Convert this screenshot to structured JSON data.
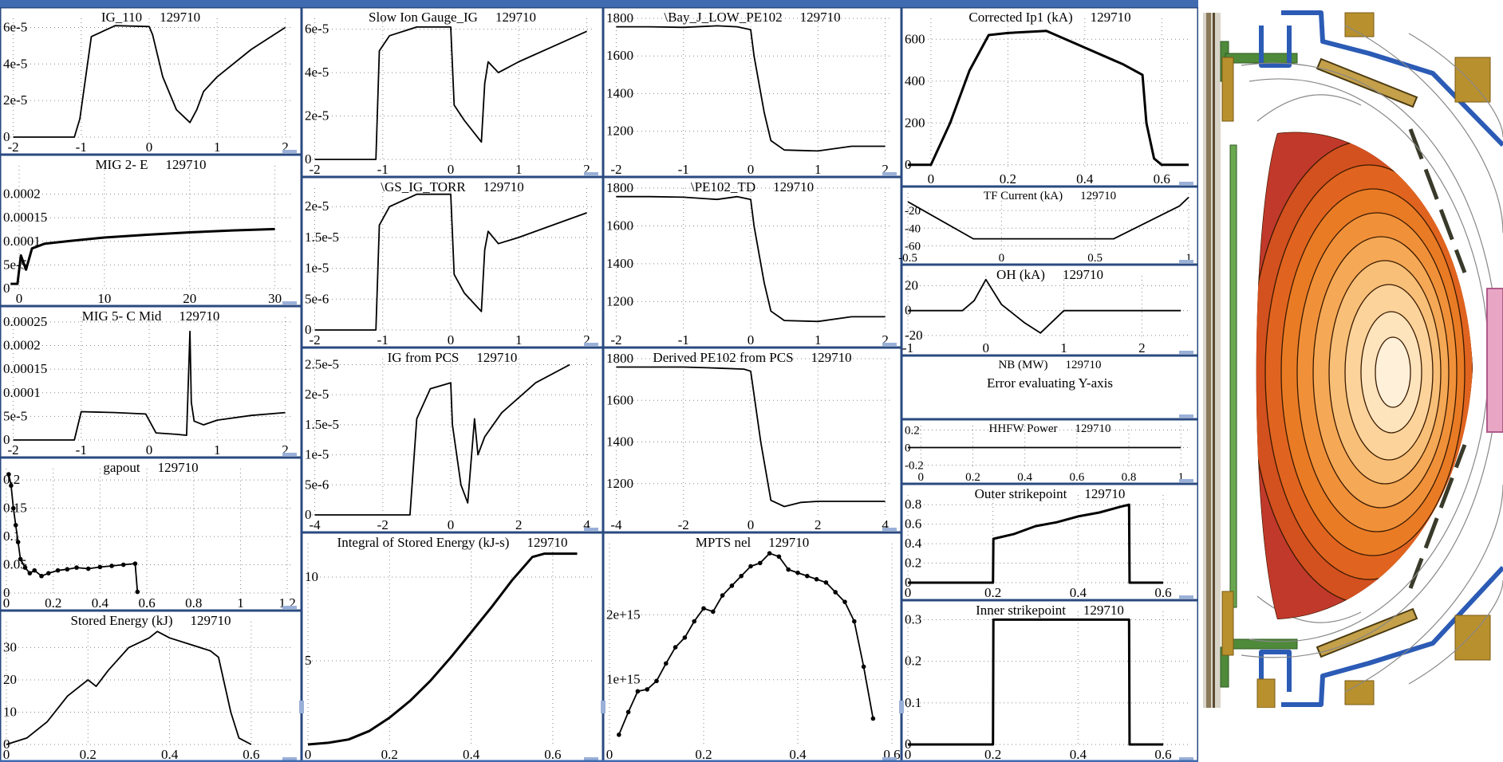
{
  "shot": "129710",
  "colors": {
    "line": "#000000",
    "grid": "#888888",
    "frame": "#2a4a80",
    "tab": "#9ab0d8",
    "bar": "#3f6bb0",
    "vessel_blue": "#2b5bb5",
    "coil_gold": "#b8902e",
    "tile_green": "#4f8a3a",
    "antenna_pink": "#e8a6c4"
  },
  "chart_data": [
    {
      "id": "p1",
      "col": 0,
      "row": 0,
      "type": "line",
      "title": "IG_110",
      "shot": "129710",
      "ylim": [
        0,
        6.5e-05
      ],
      "xlim": [
        -2.1,
        2.1
      ],
      "yticks": [
        0,
        2e-05,
        4e-05,
        6e-05
      ],
      "ytick_labels": [
        "0",
        "2e-5",
        "4e-5",
        "6e-5"
      ],
      "xticks": [
        -2,
        -1,
        0,
        1,
        2
      ],
      "xtick_labels": [
        "-2",
        "-1",
        "0",
        "1",
        "2"
      ],
      "x": [
        -2,
        -1.1,
        -1.02,
        -0.85,
        -0.5,
        0,
        0.05,
        0.2,
        0.4,
        0.6,
        0.7,
        0.8,
        1.0,
        1.5,
        2.0
      ],
      "y": [
        0,
        0,
        1e-05,
        5.5e-05,
        6.1e-05,
        6.05e-05,
        5.6e-05,
        3.3e-05,
        1.5e-05,
        8e-06,
        1.5e-05,
        2.5e-05,
        3.3e-05,
        4.8e-05,
        6e-05
      ]
    },
    {
      "id": "p2",
      "col": 0,
      "row": 1,
      "type": "line",
      "title": "MIG 2- E",
      "shot": "129710",
      "ylim": [
        0,
        0.00026
      ],
      "xlim": [
        -1.5,
        32
      ],
      "yticks": [
        0,
        5e-05,
        0.0001,
        0.00015,
        0.0002
      ],
      "ytick_labels": [
        "0",
        "5e-5",
        "0.0001",
        "0.00015",
        "0.0002"
      ],
      "xticks": [
        0,
        10,
        20,
        30
      ],
      "xtick_labels": [
        "0",
        "10",
        "20",
        "30"
      ],
      "x": [
        -1,
        -0.2,
        0.2,
        0.8,
        1.5,
        3,
        6,
        10,
        15,
        20,
        25,
        30
      ],
      "y": [
        1e-05,
        1e-05,
        7e-05,
        4e-05,
        8.5e-05,
        9.5e-05,
        0.000101,
        0.000108,
        0.000114,
        0.000119,
        0.000123,
        0.000126
      ]
    },
    {
      "id": "p3",
      "col": 0,
      "row": 2,
      "type": "line",
      "title": "MIG 5- C Mid",
      "shot": "129710",
      "ylim": [
        0,
        0.00026
      ],
      "xlim": [
        -2.1,
        2.1
      ],
      "yticks": [
        0,
        5e-05,
        0.0001,
        0.00015,
        0.0002,
        0.00025
      ],
      "ytick_labels": [
        "0",
        "5e-5",
        "0.0001",
        "0.00015",
        "0.0002",
        "0.00025"
      ],
      "xticks": [
        -2,
        -1,
        0,
        1,
        2
      ],
      "xtick_labels": [
        "-2",
        "-1",
        "0",
        "1",
        "2"
      ],
      "x": [
        -2,
        -1.1,
        -1.0,
        -0.5,
        -0.05,
        0.1,
        0.4,
        0.55,
        0.6,
        0.62,
        0.66,
        0.8,
        1.0,
        1.5,
        2.0
      ],
      "y": [
        0,
        0,
        6e-05,
        5.8e-05,
        5.5e-05,
        1.5e-05,
        1.2e-05,
        1e-05,
        0.00023,
        8e-05,
        4e-05,
        3.2e-05,
        4.2e-05,
        5.2e-05,
        5.8e-05
      ]
    },
    {
      "id": "p4",
      "col": 0,
      "row": 3,
      "type": "scatter",
      "title": "gapout",
      "shot": "129710",
      "ylim": [
        0,
        0.22
      ],
      "xlim": [
        0,
        1.22
      ],
      "yticks": [
        0,
        0.05,
        0.1,
        0.15,
        0.2
      ],
      "ytick_labels": [
        "0",
        "0.05",
        "0.1",
        "0.15",
        "0.2"
      ],
      "xticks": [
        0,
        0.2,
        0.4,
        0.6,
        0.8,
        1,
        1.2
      ],
      "xtick_labels": [
        "0",
        "0.2",
        "0.4",
        "0.6",
        "0.8",
        "1",
        "1.2"
      ],
      "x": [
        0.01,
        0.02,
        0.03,
        0.04,
        0.05,
        0.06,
        0.08,
        0.1,
        0.12,
        0.15,
        0.18,
        0.22,
        0.26,
        0.3,
        0.35,
        0.4,
        0.45,
        0.5,
        0.55,
        0.56
      ],
      "y": [
        0.21,
        0.19,
        0.15,
        0.12,
        0.09,
        0.06,
        0.045,
        0.035,
        0.04,
        0.03,
        0.035,
        0.04,
        0.042,
        0.045,
        0.043,
        0.046,
        0.048,
        0.05,
        0.052,
        0.002
      ]
    },
    {
      "id": "p5",
      "col": 0,
      "row": 4,
      "type": "line",
      "title": "Stored Energy (kJ)",
      "shot": "129710",
      "ylim": [
        0,
        38
      ],
      "xlim": [
        0,
        0.7
      ],
      "yticks": [
        0,
        10,
        20,
        30
      ],
      "ytick_labels": [
        "0",
        "10",
        "20",
        "30"
      ],
      "xticks": [
        0,
        0.2,
        0.4,
        0.6
      ],
      "xtick_labels": [
        "0",
        "0.2",
        "0.4",
        "0.6"
      ],
      "x": [
        0,
        0.05,
        0.1,
        0.15,
        0.2,
        0.22,
        0.25,
        0.3,
        0.35,
        0.37,
        0.4,
        0.45,
        0.5,
        0.52,
        0.55,
        0.57,
        0.6
      ],
      "y": [
        0,
        2,
        7,
        15,
        20,
        18,
        23,
        30,
        33,
        35,
        33,
        31,
        29,
        27,
        10,
        2,
        0
      ]
    },
    {
      "id": "p6",
      "col": 1,
      "row": 0,
      "type": "line",
      "title": "Slow Ion Gauge_IG",
      "shot": "129710",
      "ylim": [
        0,
        6.5e-05
      ],
      "xlim": [
        -2.1,
        2.1
      ],
      "yticks": [
        0,
        2e-05,
        4e-05,
        6e-05
      ],
      "ytick_labels": [
        "0",
        "2e-5",
        "4e-5",
        "6e-5"
      ],
      "xticks": [
        -2,
        -1,
        0,
        1,
        2
      ],
      "xtick_labels": [
        "-2",
        "-1",
        "0",
        "1",
        "2"
      ],
      "x": [
        -2,
        -1.1,
        -1.05,
        -0.9,
        -0.5,
        0,
        0.05,
        0.2,
        0.45,
        0.5,
        0.55,
        0.7,
        1.0,
        1.5,
        2.0
      ],
      "y": [
        0,
        0,
        5e-05,
        5.7e-05,
        6.1e-05,
        6.1e-05,
        2.5e-05,
        1.8e-05,
        8e-06,
        3.5e-05,
        4.5e-05,
        4e-05,
        4.5e-05,
        5.2e-05,
        5.9e-05
      ]
    },
    {
      "id": "p7",
      "col": 1,
      "row": 1,
      "type": "line",
      "title": "\\GS_IG_TORR",
      "shot": "129710",
      "ylim": [
        0,
        2.3e-05
      ],
      "xlim": [
        -2.1,
        2.1
      ],
      "yticks": [
        0,
        5e-06,
        1e-05,
        1.5e-05,
        2e-05
      ],
      "ytick_labels": [
        "0",
        "5e-6",
        "1e-5",
        "1.5e-5",
        "2e-5"
      ],
      "xticks": [
        -2,
        -1,
        0,
        1,
        2
      ],
      "xtick_labels": [
        "-2",
        "-1",
        "0",
        "1",
        "2"
      ],
      "x": [
        -2,
        -1.1,
        -1.05,
        -0.9,
        -0.5,
        0,
        0.05,
        0.2,
        0.45,
        0.5,
        0.55,
        0.7,
        1.0,
        1.5,
        2.0
      ],
      "y": [
        0,
        0,
        1.7e-05,
        2e-05,
        2.2e-05,
        2.2e-05,
        9e-06,
        6e-06,
        3e-06,
        1.3e-05,
        1.6e-05,
        1.4e-05,
        1.5e-05,
        1.7e-05,
        1.9e-05
      ]
    },
    {
      "id": "p8",
      "col": 1,
      "row": 2,
      "type": "line",
      "title": "IG from PCS",
      "shot": "129710",
      "ylim": [
        0,
        2.6e-05
      ],
      "xlim": [
        -4.2,
        4.2
      ],
      "yticks": [
        0,
        5e-06,
        1e-05,
        1.5e-05,
        2e-05,
        2.5e-05
      ],
      "ytick_labels": [
        "0",
        "5e-6",
        "1e-5",
        "1.5e-5",
        "2e-5",
        "2.5e-5"
      ],
      "xticks": [
        -4,
        -2,
        0,
        2,
        4
      ],
      "xtick_labels": [
        "-4",
        "-2",
        "0",
        "2",
        "4"
      ],
      "x": [
        -4,
        -1.2,
        -1.0,
        -0.6,
        0,
        0.05,
        0.3,
        0.5,
        0.7,
        0.8,
        1.0,
        1.5,
        2.5,
        3.5
      ],
      "y": [
        0,
        0,
        1.6e-05,
        2.1e-05,
        2.2e-05,
        1.5e-05,
        5e-06,
        2e-06,
        1.6e-05,
        1e-05,
        1.3e-05,
        1.7e-05,
        2.2e-05,
        2.5e-05
      ]
    },
    {
      "id": "p9",
      "col": 1,
      "row": 3,
      "type": "line",
      "title": "Integral of Stored Energy (kJ-s)",
      "shot": "129710",
      "ylim": [
        0,
        12
      ],
      "xlim": [
        0,
        0.7
      ],
      "yticks": [
        5,
        10
      ],
      "ytick_labels": [
        "5",
        "10"
      ],
      "xticks": [
        0,
        0.2,
        0.4,
        0.6
      ],
      "xtick_labels": [
        "0",
        "0.2",
        "0.4",
        "0.6"
      ],
      "x": [
        0,
        0.05,
        0.1,
        0.15,
        0.2,
        0.25,
        0.3,
        0.35,
        0.4,
        0.45,
        0.5,
        0.55,
        0.58,
        0.66
      ],
      "y": [
        0,
        0.1,
        0.3,
        0.8,
        1.6,
        2.6,
        3.8,
        5.2,
        6.7,
        8.2,
        9.8,
        11.2,
        11.4,
        11.4
      ]
    },
    {
      "id": "p10",
      "col": 2,
      "row": 0,
      "type": "line",
      "title": "\\Bay_J_LOW_PE102",
      "shot": "129710",
      "ylim": [
        1050,
        1800
      ],
      "xlim": [
        -2.1,
        2.1
      ],
      "yticks": [
        1200,
        1400,
        1600,
        1800
      ],
      "ytick_labels": [
        "1200",
        "1400",
        "1600",
        "1800"
      ],
      "xticks": [
        -2,
        -1,
        0,
        1,
        2
      ],
      "xtick_labels": [
        "-2",
        "-1",
        "0",
        "1",
        "2"
      ],
      "x": [
        -2,
        -1.5,
        -1,
        -0.5,
        -0.2,
        0,
        0.05,
        0.2,
        0.3,
        0.5,
        1,
        1.5,
        2
      ],
      "y": [
        1755,
        1755,
        1752,
        1760,
        1755,
        1740,
        1600,
        1300,
        1150,
        1100,
        1095,
        1120,
        1120
      ]
    },
    {
      "id": "p11",
      "col": 2,
      "row": 1,
      "type": "line",
      "title": "\\PE102_TD",
      "shot": "129710",
      "ylim": [
        1050,
        1800
      ],
      "xlim": [
        -2.1,
        2.1
      ],
      "yticks": [
        1200,
        1400,
        1600,
        1800
      ],
      "ytick_labels": [
        "1200",
        "1400",
        "1600",
        "1800"
      ],
      "xticks": [
        -2,
        -1,
        0,
        1,
        2
      ],
      "xtick_labels": [
        "-2",
        "-1",
        "0",
        "1",
        "2"
      ],
      "x": [
        -2,
        -1.5,
        -1,
        -0.5,
        -0.2,
        0,
        0.05,
        0.2,
        0.3,
        0.5,
        1,
        1.5,
        2
      ],
      "y": [
        1755,
        1755,
        1752,
        1740,
        1755,
        1740,
        1600,
        1300,
        1150,
        1100,
        1095,
        1120,
        1120
      ]
    },
    {
      "id": "p12",
      "col": 2,
      "row": 2,
      "type": "line",
      "title": "Derived PE102 from PCS",
      "shot": "129710",
      "ylim": [
        1050,
        1800
      ],
      "xlim": [
        -4.2,
        4.2
      ],
      "yticks": [
        1200,
        1400,
        1600,
        1800
      ],
      "ytick_labels": [
        "1200",
        "1400",
        "1600",
        "1800"
      ],
      "xticks": [
        -4,
        -2,
        0,
        2,
        4
      ],
      "xtick_labels": [
        "-4",
        "-2",
        "0",
        "2",
        "4"
      ],
      "x": [
        -4,
        -3,
        -2,
        -1,
        -0.2,
        0,
        0.3,
        0.6,
        1,
        1.5,
        2,
        3,
        4
      ],
      "y": [
        1760,
        1760,
        1760,
        1755,
        1750,
        1740,
        1400,
        1120,
        1090,
        1110,
        1115,
        1115,
        1115
      ]
    },
    {
      "id": "p13",
      "col": 2,
      "row": 3,
      "type": "scatter",
      "title": "MPTS nel",
      "shot": "129710",
      "ylim": [
        0,
        3100000000000000.0
      ],
      "xlim": [
        0,
        0.6
      ],
      "yticks": [
        1000000000000000.0,
        2000000000000000.0
      ],
      "ytick_labels": [
        "1e+15",
        "2e+15"
      ],
      "xticks": [
        0,
        0.2,
        0.4,
        0.6
      ],
      "xtick_labels": [
        "0",
        "0.2",
        "0.4",
        "0.6"
      ],
      "x": [
        0.02,
        0.04,
        0.06,
        0.08,
        0.1,
        0.12,
        0.14,
        0.16,
        0.18,
        0.2,
        0.22,
        0.24,
        0.26,
        0.28,
        0.3,
        0.32,
        0.34,
        0.36,
        0.38,
        0.4,
        0.42,
        0.44,
        0.46,
        0.48,
        0.5,
        0.52,
        0.54,
        0.56
      ],
      "y": [
        150000000000000.0,
        500000000000000.0,
        820000000000000.0,
        850000000000000.0,
        980000000000000.0,
        1250000000000000.0,
        1500000000000000.0,
        1650000000000000.0,
        1900000000000000.0,
        2100000000000000.0,
        2050000000000000.0,
        2300000000000000.0,
        2450000000000000.0,
        2600000000000000.0,
        2750000000000000.0,
        2800000000000000.0,
        2950000000000000.0,
        2900000000000000.0,
        2700000000000000.0,
        2650000000000000.0,
        2600000000000000.0,
        2550000000000000.0,
        2500000000000000.0,
        2350000000000000.0,
        2200000000000000.0,
        1900000000000000.0,
        1200000000000000.0,
        400000000000000.0
      ]
    },
    {
      "id": "p14",
      "col": 3,
      "row": 0,
      "type": "line",
      "title": "Corrected Ip1 (kA)",
      "shot": "129710",
      "ylim": [
        -20,
        700
      ],
      "xlim": [
        -0.06,
        0.67
      ],
      "yticks": [
        0,
        200,
        400,
        600
      ],
      "ytick_labels": [
        "0",
        "200",
        "400",
        "600"
      ],
      "xticks": [
        0,
        0.2,
        0.4,
        0.6
      ],
      "xtick_labels": [
        "0",
        "0.2",
        "0.4",
        "0.6"
      ],
      "x": [
        -0.06,
        0.0,
        0.05,
        0.1,
        0.15,
        0.2,
        0.3,
        0.4,
        0.5,
        0.55,
        0.56,
        0.58,
        0.6,
        0.67
      ],
      "y": [
        0,
        0,
        200,
        450,
        620,
        630,
        640,
        560,
        480,
        430,
        200,
        30,
        0,
        0
      ]
    },
    {
      "id": "p15",
      "col": 3,
      "row": 1,
      "type": "line",
      "title": "TF Current (kA)",
      "shot": "129710",
      "ylim": [
        -65,
        0
      ],
      "xlim": [
        -0.5,
        1.0
      ],
      "yticks": [
        -20,
        -40,
        -60
      ],
      "ytick_labels": [
        "-20",
        "-40",
        "-60"
      ],
      "xticks": [
        -0.5,
        0,
        0.5,
        1
      ],
      "xtick_labels": [
        "-0.5",
        "0",
        "0.5",
        "1"
      ],
      "x": [
        -0.5,
        -0.15,
        0.6,
        0.95,
        1.0
      ],
      "y": [
        -10,
        -52,
        -52,
        -15,
        -5
      ]
    },
    {
      "id": "p16",
      "col": 3,
      "row": 2,
      "type": "line",
      "title": "OH (kA)",
      "shot": "129710",
      "ylim": [
        -22,
        28
      ],
      "xlim": [
        -1.0,
        2.6
      ],
      "yticks": [
        -20,
        0,
        20
      ],
      "ytick_labels": [
        "-20",
        "0",
        "20"
      ],
      "xticks": [
        -1,
        0,
        1,
        2
      ],
      "xtick_labels": [
        "-1",
        "0",
        "1",
        "2"
      ],
      "x": [
        -1,
        -0.3,
        -0.15,
        0,
        0.2,
        0.5,
        0.7,
        1.0,
        2.5
      ],
      "y": [
        0,
        0,
        8,
        25,
        5,
        -10,
        -18,
        0,
        0
      ]
    },
    {
      "id": "p17",
      "col": 3,
      "row": 3,
      "type": "text",
      "title": "NB (MW)",
      "shot": "129710",
      "message": "Error evaluating Y-axis"
    },
    {
      "id": "p18",
      "col": 3,
      "row": 4,
      "type": "line",
      "title": "HHFW Power",
      "shot": "129710",
      "ylim": [
        -0.25,
        0.25
      ],
      "xlim": [
        -0.05,
        1.03
      ],
      "yticks": [
        -0.2,
        0,
        0.2
      ],
      "ytick_labels": [
        "-0.2",
        "0",
        "0.2"
      ],
      "xticks": [
        0,
        0.2,
        0.4,
        0.6,
        0.8,
        1
      ],
      "xtick_labels": [
        "0",
        "0.2",
        "0.4",
        "0.6",
        "0.8",
        "1"
      ],
      "x": [
        -0.05,
        1.0
      ],
      "y": [
        0,
        0
      ]
    },
    {
      "id": "p19",
      "col": 3,
      "row": 5,
      "type": "line",
      "title": "Outer strikepoint",
      "shot": "129710",
      "ylim": [
        0,
        0.9
      ],
      "xlim": [
        0,
        0.66
      ],
      "yticks": [
        0,
        0.2,
        0.4,
        0.6,
        0.8
      ],
      "ytick_labels": [
        "0",
        "0.2",
        "0.4",
        "0.6",
        "0.8"
      ],
      "xticks": [
        0,
        0.2,
        0.4,
        0.6
      ],
      "xtick_labels": [
        "0",
        "0.2",
        "0.4",
        "0.6"
      ],
      "x": [
        0,
        0.2,
        0.201,
        0.25,
        0.3,
        0.35,
        0.4,
        0.45,
        0.5,
        0.52,
        0.521,
        0.6
      ],
      "y": [
        0,
        0,
        0.45,
        0.5,
        0.58,
        0.62,
        0.68,
        0.72,
        0.78,
        0.8,
        0,
        0
      ]
    },
    {
      "id": "p20",
      "col": 3,
      "row": 6,
      "type": "line",
      "title": "Inner strikepoint",
      "shot": "129710",
      "ylim": [
        0,
        0.32
      ],
      "xlim": [
        0,
        0.66
      ],
      "yticks": [
        0,
        0.1,
        0.2,
        0.3
      ],
      "ytick_labels": [
        "0",
        "0.1",
        "0.2",
        "0.3"
      ],
      "xticks": [
        0,
        0.2,
        0.4,
        0.6
      ],
      "xtick_labels": [
        "0",
        "0.2",
        "0.4",
        "0.6"
      ],
      "x": [
        0,
        0.2,
        0.201,
        0.52,
        0.521,
        0.6
      ],
      "y": [
        0,
        0,
        0.3,
        0.3,
        0,
        0
      ]
    }
  ]
}
